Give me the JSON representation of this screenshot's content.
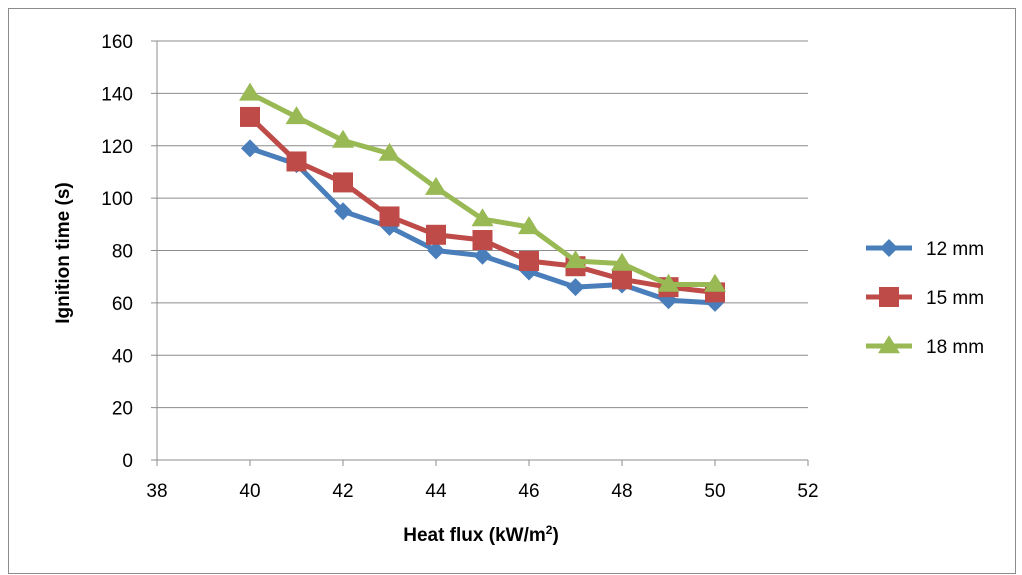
{
  "chart_data": {
    "type": "line",
    "title": "",
    "xlabel": "Heat flux (kW/m²)",
    "xlabel_base": "Heat flux (kW/m",
    "xlabel_sup": "2",
    "xlabel_end": ")",
    "ylabel": "Ignition time (s)",
    "xlim": [
      38,
      52
    ],
    "ylim": [
      0,
      160
    ],
    "xticks": [
      38,
      40,
      42,
      44,
      46,
      48,
      50,
      52
    ],
    "yticks": [
      0,
      20,
      40,
      60,
      80,
      100,
      120,
      140,
      160
    ],
    "grid": "horizontal",
    "legend_position": "right",
    "x": [
      40,
      41,
      42,
      43,
      44,
      45,
      46,
      47,
      48,
      49,
      50
    ],
    "series": [
      {
        "name": "12 mm",
        "color": "#4a7ebb",
        "marker": "diamond",
        "values": [
          119,
          113,
          95,
          89,
          80,
          78,
          72,
          66,
          67,
          61,
          60
        ]
      },
      {
        "name": "15 mm",
        "color": "#be4b48",
        "marker": "square",
        "values": [
          131,
          114,
          106,
          93,
          86,
          84,
          76,
          74,
          69,
          66,
          64
        ]
      },
      {
        "name": "18 mm",
        "color": "#98b954",
        "marker": "triangle",
        "values": [
          140,
          131,
          122,
          117,
          104,
          92,
          89,
          76,
          75,
          67,
          67
        ]
      }
    ]
  }
}
